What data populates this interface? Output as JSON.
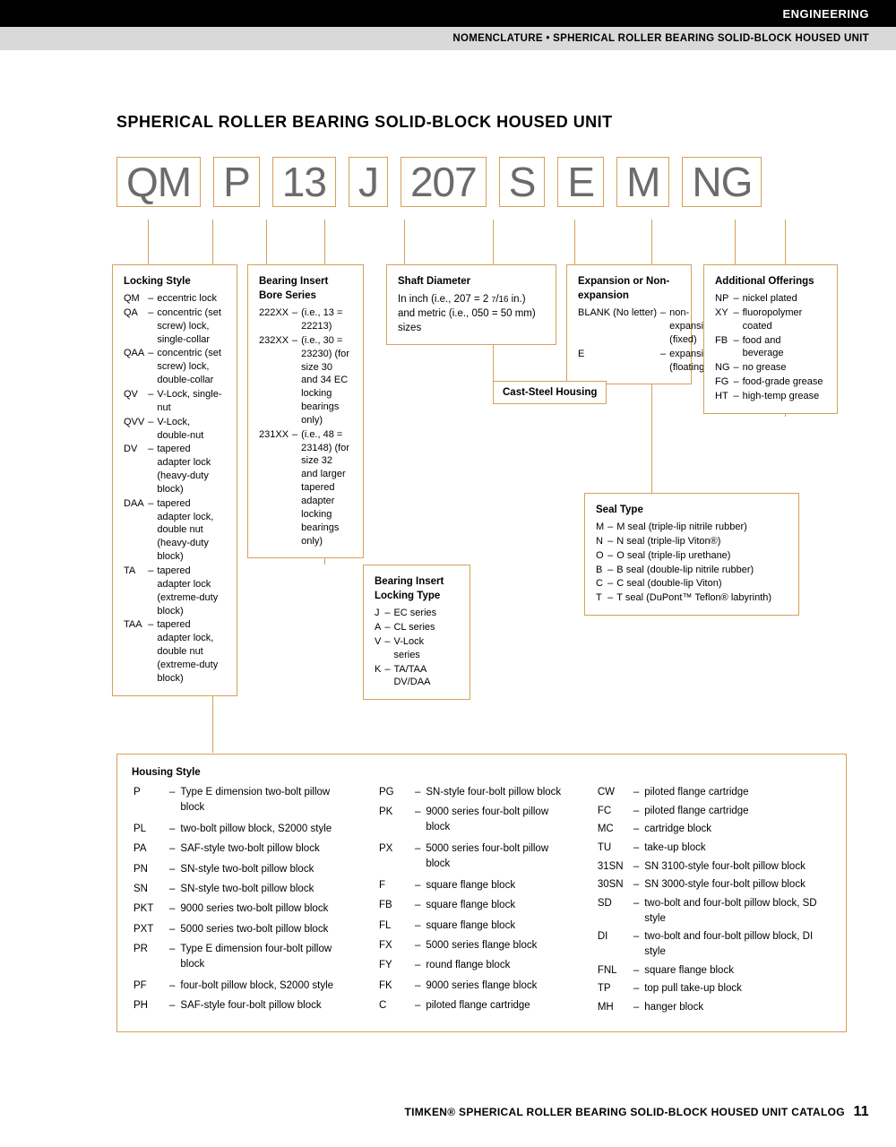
{
  "header": {
    "section": "ENGINEERING",
    "subtitle": "NOMENCLATURE • SPHERICAL ROLLER BEARING SOLID-BLOCK HOUSED UNIT"
  },
  "title": "SPHERICAL ROLLER BEARING SOLID-BLOCK HOUSED UNIT",
  "codes": [
    "QM",
    "P",
    "13",
    "J",
    "207",
    "S",
    "E",
    "M",
    "NG"
  ],
  "colors": {
    "accent": "#d6a05a",
    "code_text": "#6b6b6b"
  },
  "locking_style": {
    "title": "Locking Style",
    "rows": [
      [
        "QM",
        "eccentric lock"
      ],
      [
        "QA",
        "concentric (set screw) lock, single-collar"
      ],
      [
        "QAA",
        "concentric (set screw) lock, double-collar"
      ],
      [
        "QV",
        "V-Lock, single-nut"
      ],
      [
        "QVV",
        "V-Lock, double-nut"
      ],
      [
        "DV",
        "tapered adapter lock (heavy-duty block)"
      ],
      [
        "DAA",
        "tapered adapter lock, double nut (heavy-duty block)"
      ],
      [
        "TA",
        "tapered adapter lock (extreme-duty block)"
      ],
      [
        "TAA",
        "tapered adapter lock, double nut (extreme-duty block)"
      ]
    ]
  },
  "bore_series": {
    "title": "Bearing Insert Bore Series",
    "rows": [
      [
        "222XX",
        "(i.e., 13 = 22213)"
      ],
      [
        "232XX",
        "(i.e., 30 = 23230) (for size 30 and 34 EC locking bearings only)"
      ],
      [
        "231XX",
        "(i.e., 48 = 23148) (for size 32 and larger tapered adapter locking bearings only)"
      ]
    ]
  },
  "locking_type": {
    "title": "Bearing Insert Locking Type",
    "rows": [
      [
        "J",
        "EC series"
      ],
      [
        "A",
        "CL series"
      ],
      [
        "V",
        "V-Lock series"
      ],
      [
        "K",
        "TA/TAA DV/DAA"
      ]
    ]
  },
  "shaft": {
    "title": "Shaft Diameter",
    "text": "In inch (i.e., 207 = 2 7/16 in.) and metric (i.e., 050 = 50 mm) sizes"
  },
  "cast_steel": "Cast-Steel Housing",
  "expansion": {
    "title": "Expansion or Non-expansion",
    "rows": [
      [
        "BLANK (No letter)",
        "non-expansion (fixed)"
      ],
      [
        "E",
        "expansion (floating)"
      ]
    ]
  },
  "seal_type": {
    "title": "Seal Type",
    "rows": [
      [
        "M",
        "M seal (triple-lip nitrile rubber)"
      ],
      [
        "N",
        "N seal (triple-lip Viton®)"
      ],
      [
        "O",
        "O seal (triple-lip urethane)"
      ],
      [
        "B",
        "B seal (double-lip nitrile rubber)"
      ],
      [
        "C",
        "C seal (double-lip Viton)"
      ],
      [
        "T",
        "T seal (DuPont™ Teflon® labyrinth)"
      ]
    ]
  },
  "additional": {
    "title": "Additional Offerings",
    "rows": [
      [
        "NP",
        "nickel plated"
      ],
      [
        "XY",
        "fluoropolymer coated"
      ],
      [
        "FB",
        "food and beverage"
      ],
      [
        "NG",
        "no grease"
      ],
      [
        "FG",
        "food-grade grease"
      ],
      [
        "HT",
        "high-temp grease"
      ]
    ]
  },
  "housing": {
    "title": "Housing Style",
    "col1": [
      [
        "P",
        "Type E dimension two-bolt pillow block"
      ],
      [
        "PL",
        "two-bolt pillow block, S2000 style"
      ],
      [
        "PA",
        "SAF-style two-bolt pillow block"
      ],
      [
        "PN",
        "SN-style two-bolt pillow block"
      ],
      [
        "SN",
        "SN-style two-bolt pillow block"
      ],
      [
        "PKT",
        "9000 series two-bolt pillow block"
      ],
      [
        "PXT",
        "5000 series two-bolt pillow block"
      ],
      [
        "PR",
        "Type E dimension four-bolt pillow block"
      ],
      [
        "PF",
        "four-bolt pillow block, S2000 style"
      ],
      [
        "PH",
        "SAF-style four-bolt pillow block"
      ]
    ],
    "col2": [
      [
        "PG",
        "SN-style four-bolt pillow block"
      ],
      [
        "PK",
        "9000 series four-bolt pillow block"
      ],
      [
        "PX",
        "5000 series four-bolt pillow block"
      ],
      [
        "F",
        "square flange block"
      ],
      [
        "FB",
        "square flange block"
      ],
      [
        "FL",
        "square flange block"
      ],
      [
        "FX",
        "5000 series flange block"
      ],
      [
        "FY",
        "round flange block"
      ],
      [
        "FK",
        "9000 series flange block"
      ],
      [
        "C",
        "piloted flange cartridge"
      ]
    ],
    "col3": [
      [
        "CW",
        "piloted flange cartridge"
      ],
      [
        "FC",
        "piloted flange cartridge"
      ],
      [
        "MC",
        "cartridge block"
      ],
      [
        "TU",
        "take-up block"
      ],
      [
        "31SN",
        "SN 3100-style four-bolt pillow block"
      ],
      [
        "30SN",
        "SN 3000-style four-bolt pillow block"
      ],
      [
        "SD",
        "two-bolt and four-bolt pillow block, SD style"
      ],
      [
        "DI",
        "two-bolt and four-bolt pillow block, DI style"
      ],
      [
        "FNL",
        "square flange block"
      ],
      [
        "TP",
        "top pull take-up block"
      ],
      [
        "MH",
        "hanger block"
      ]
    ]
  },
  "footer": {
    "brand": "TIMKEN® SPHERICAL ROLLER BEARING SOLID-BLOCK HOUSED UNIT CATALOG",
    "page": "11"
  }
}
